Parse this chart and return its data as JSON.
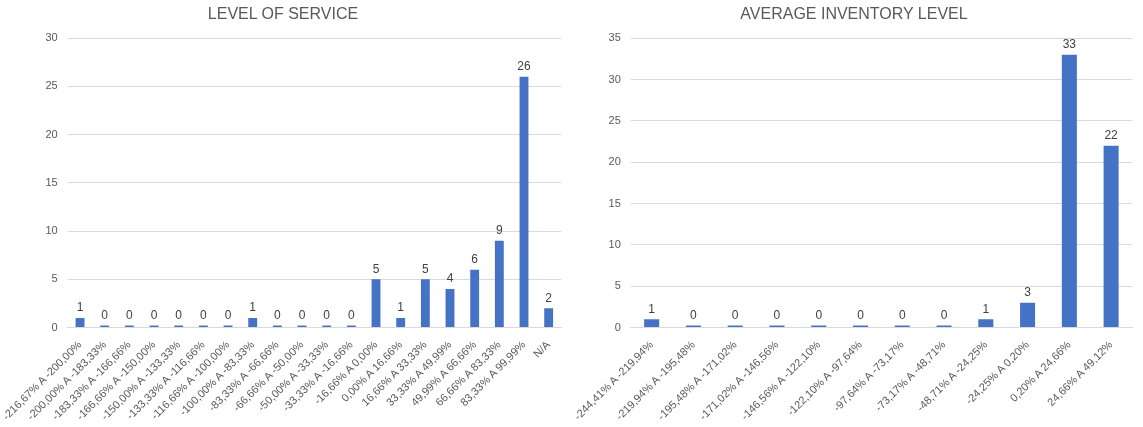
{
  "chart_data": [
    {
      "type": "bar",
      "title": "LEVEL OF SERVICE",
      "categories": [
        "-216,67% A -200,00%",
        "-200,00% A -183,33%",
        "-183,33% A -166,66%",
        "-166,66% A -150,00%",
        "-150,00% A -133,33%",
        "-133,33% A -116,66%",
        "-116,66% A -100,00%",
        "-100,00% A -83,33%",
        "-83,33% A -66,66%",
        "-66,66% A -50,00%",
        "-50,00% A -33,33%",
        "-33,33% A -16,66%",
        "-16,66% A 0,00%",
        "0,00% A 16,66%",
        "16,66% A 33,33%",
        "33,33% A 49,99%",
        "49,99% A 66,66%",
        "66,66% A 83,33%",
        "83,33% A 99,99%",
        "N/A"
      ],
      "values": [
        1,
        0,
        0,
        0,
        0,
        0,
        0,
        1,
        0,
        0,
        0,
        0,
        5,
        1,
        5,
        4,
        6,
        9,
        26,
        2
      ],
      "color": "#4472c4",
      "ylim": [
        0,
        30
      ],
      "yticks": [
        0,
        5,
        10,
        15,
        20,
        25,
        30
      ],
      "grid": "y",
      "data_labels": true
    },
    {
      "type": "bar",
      "title": "AVERAGE INVENTORY LEVEL",
      "categories": [
        "-244,41% A -219,94%",
        "-219,94% A -195,48%",
        "-195,48% A -171,02%",
        "-171,02% A -146,56%",
        "-146,56% A -122,10%",
        "-122,10% A -97,64%",
        "-97,64% A -73,17%",
        "-73,17% A -48,71%",
        "-48,71% A -24,25%",
        "-24,25% A 0,20%",
        "0,20% A 24,66%",
        "24,66% A 49,12%"
      ],
      "values": [
        1,
        0,
        0,
        0,
        0,
        0,
        0,
        0,
        1,
        3,
        33,
        22
      ],
      "color": "#4472c4",
      "ylim": [
        0,
        35
      ],
      "yticks": [
        0,
        5,
        10,
        15,
        20,
        25,
        30,
        35
      ],
      "grid": "y",
      "data_labels": true
    }
  ]
}
